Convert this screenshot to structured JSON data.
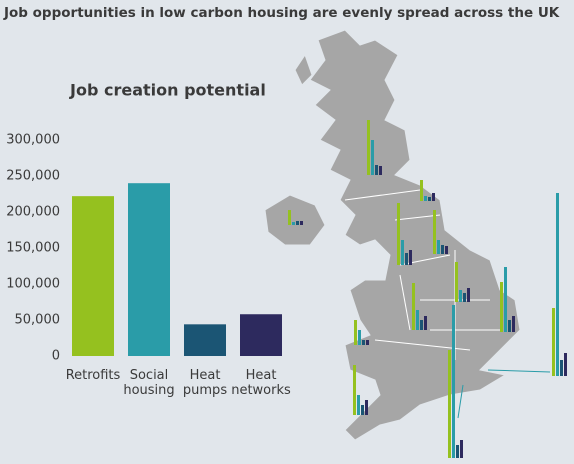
{
  "title": "Job opportunities in low carbon housing are evenly spread across the UK",
  "chart_data": {
    "type": "bar",
    "title": "Job creation potential",
    "categories": [
      "Retrofits",
      "Social housing",
      "Heat pumps",
      "Heat networks"
    ],
    "values": [
      222000,
      240000,
      44000,
      58000
    ],
    "colors": [
      "#95c11f",
      "#2a9ca8",
      "#1b5574",
      "#2d2a5e"
    ],
    "ylim": [
      0,
      300000
    ],
    "yticks": [
      0,
      {
        "value": 50000,
        "label": "50,000"
      },
      {
        "value": 100000,
        "label": "100,000"
      },
      {
        "value": 150000,
        "label": "150,000"
      },
      {
        "value": 200000,
        "label": "200,000"
      },
      {
        "value": 250000,
        "label": "250,000"
      },
      {
        "value": 300000,
        "label": "300,000"
      }
    ],
    "grid": false
  }
}
